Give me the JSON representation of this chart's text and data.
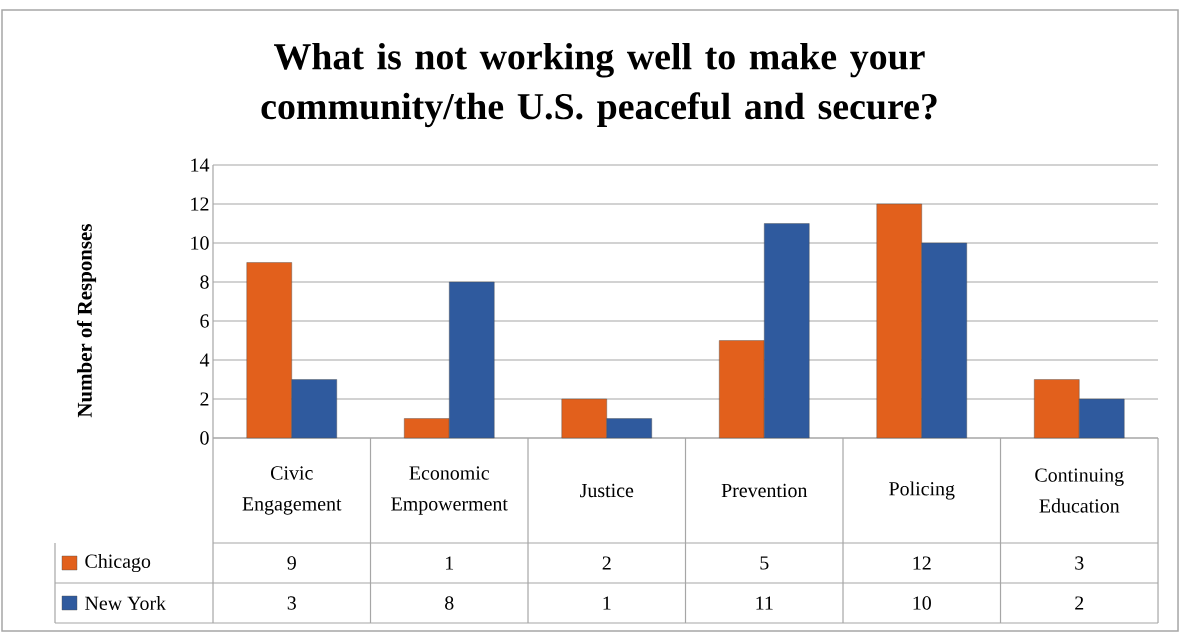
{
  "chart_data": {
    "type": "bar",
    "title": "What is not working well to make your community/the U.S. peaceful and secure?",
    "ylabel": "Number of Responses",
    "categories": [
      "Civic Engagement",
      "Economic Empowerment",
      "Justice",
      "Prevention",
      "Policing",
      "Continuing Education"
    ],
    "series": [
      {
        "name": "Chicago",
        "color": "#e2601c",
        "values": [
          9,
          1,
          2,
          5,
          12,
          3
        ]
      },
      {
        "name": "New York",
        "color": "#2f5a9e",
        "values": [
          3,
          8,
          1,
          11,
          10,
          2
        ]
      }
    ],
    "ylim": [
      0,
      14
    ],
    "yticks": [
      0,
      2,
      4,
      6,
      8,
      10,
      12,
      14
    ],
    "grid": "y",
    "legend": "bottom",
    "data_labels": true
  }
}
